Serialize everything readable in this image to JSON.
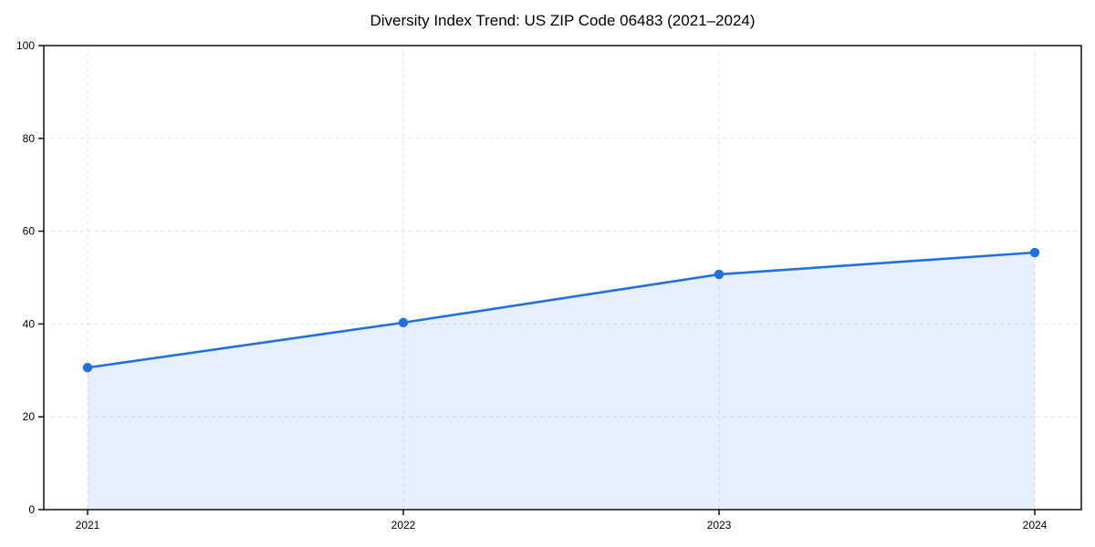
{
  "chart_data": {
    "type": "area",
    "title": "Diversity Index Trend: US ZIP Code 06483 (2021–2024)",
    "categories": [
      "2021",
      "2022",
      "2023",
      "2024"
    ],
    "series": [
      {
        "name": "Diversity Index",
        "values": [
          30.6,
          40.3,
          50.7,
          55.4
        ]
      }
    ],
    "xlabel": "",
    "ylabel": "",
    "ylim": [
      0,
      100
    ],
    "yticks": [
      0,
      20,
      40,
      60,
      80,
      100
    ],
    "grid": true,
    "grid_style": "dashed",
    "legend_position": "none",
    "colors": {
      "line": "#2270e0",
      "marker": "#2270e0",
      "fill": "rgba(34, 112, 224, 0.11)",
      "grid": "#e2e2e2",
      "axis": "#000000",
      "text": "#000000",
      "background": "#ffffff"
    }
  }
}
